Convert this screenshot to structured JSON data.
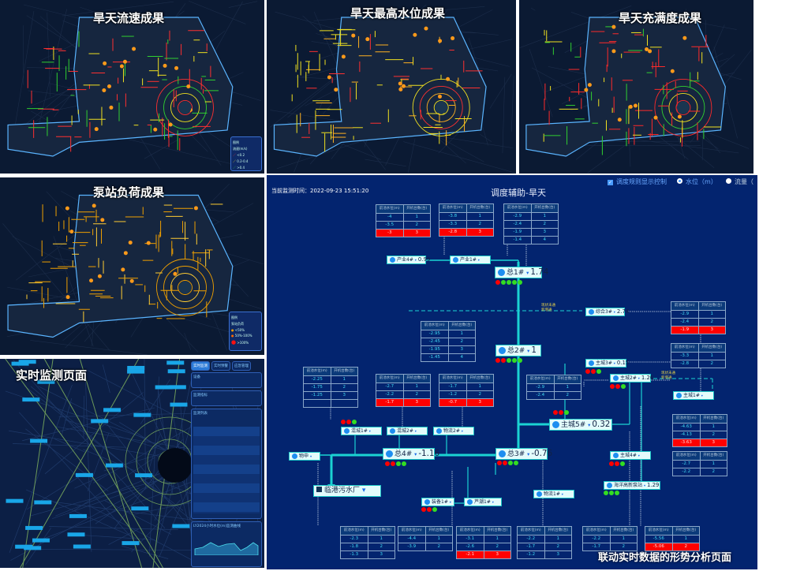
{
  "panels": [
    {
      "title": "旱天流速成果",
      "legend": {
        "title": "图例",
        "subtitle": "流速(m/s)",
        "items": [
          {
            "label": "<0.2",
            "color": "#ff3030"
          },
          {
            "label": "0.2-0.4",
            "color": "#f0e020"
          },
          {
            "label": ">0.4",
            "color": "#30d030"
          }
        ]
      }
    },
    {
      "title": "旱天最高水位成果"
    },
    {
      "title": "旱天充满度成果"
    },
    {
      "title": "泵站负荷成果",
      "legend": {
        "title": "图例",
        "subtitle": "泵站负荷",
        "items": [
          {
            "label": "<50%",
            "color": "#f0a000"
          },
          {
            "label": "50%-100%",
            "color": "#ff6a00"
          },
          {
            "label": ">100%",
            "color": "#ff1010"
          }
        ]
      }
    },
    {
      "title": "实时监测页面",
      "tabs": [
        "实时监测",
        "实时预警",
        "应急管理"
      ],
      "sections": {
        "device": "设备",
        "indicator": "监测指标",
        "list": "监测列表",
        "chart": "LY2024小时水位(m)监测曲线"
      },
      "legend_title": "图例",
      "chart_times": [
        "15:03:22",
        "20:06:47",
        "05:06:41",
        "06:53:06",
        "11:45:20"
      ]
    }
  ],
  "analysis": {
    "monitor_time": "当前监测时间：2022-09-23 15:51:20",
    "title": "调度辅助-旱天",
    "rules_toggle": "调度规则显示控制",
    "rules_checked": true,
    "radio_level": "水位（m）",
    "radio_flow": "流量（",
    "selected_radio": "level",
    "table_header": [
      "前池水位(m)",
      "开机台数(台)"
    ],
    "colors": {
      "bg": "#03246f",
      "pipe": "#1bd3d3",
      "alarm": "#ff0000",
      "ok": "#33dd22"
    },
    "tables": [
      {
        "rows": [
          [
            "-4",
            "1"
          ],
          [
            "-3.5",
            "2"
          ],
          [
            "-3",
            "3"
          ]
        ],
        "hot": 2
      },
      {
        "rows": [
          [
            "-3.8",
            "1"
          ],
          [
            "-3.3",
            "2"
          ],
          [
            "-2.8",
            "3"
          ]
        ],
        "hot": 2
      },
      {
        "rows": [
          [
            "-2.9",
            "1"
          ],
          [
            "-2.4",
            "2"
          ],
          [
            "-1.9",
            "3"
          ],
          [
            "-1.4",
            "4"
          ]
        ],
        "hot": -1
      },
      {
        "rows": [
          [
            "-2.9",
            "1"
          ],
          [
            "-2.4",
            "2"
          ],
          [
            "-1.9",
            "3"
          ]
        ],
        "hot": 2
      },
      {
        "rows": [
          [
            "-2.95",
            "1"
          ],
          [
            "-2.45",
            "2"
          ],
          [
            "-1.95",
            "3"
          ],
          [
            "-1.45",
            "4"
          ]
        ],
        "hot": -1
      },
      {
        "rows": [
          [
            "-2.25",
            "1"
          ],
          [
            "-1.75",
            "2"
          ],
          [
            "-1.25",
            "3"
          ],
          [
            "",
            ""
          ]
        ],
        "hot": -1
      },
      {
        "rows": [
          [
            "-2.7",
            "1"
          ],
          [
            "-2.2",
            "2"
          ],
          [
            "-1.7",
            "3"
          ]
        ],
        "hot": 2
      },
      {
        "rows": [
          [
            "-1.7",
            "1"
          ],
          [
            "-1.2",
            "2"
          ],
          [
            "-0.7",
            "3"
          ]
        ],
        "hot": 2
      },
      {
        "rows": [
          [
            "-3.3",
            "1"
          ],
          [
            "-2.8",
            "2"
          ]
        ],
        "hot": -1
      },
      {
        "rows": [
          [
            "-2.9",
            "1"
          ],
          [
            "-2.4",
            "2"
          ]
        ],
        "hot": -1
      },
      {
        "rows": [
          [
            "-4.63",
            "1"
          ],
          [
            "-4.13",
            "2"
          ],
          [
            "-3.63",
            "3"
          ]
        ],
        "hot": 2
      },
      {
        "rows": [
          [
            "-2.7",
            "1"
          ],
          [
            "-2.2",
            "2"
          ]
        ],
        "hot": -1
      },
      {
        "rows": [
          [
            "-2.3",
            "1"
          ],
          [
            "-1.8",
            "2"
          ],
          [
            "-1.3",
            "3"
          ]
        ],
        "hot": -1
      },
      {
        "rows": [
          [
            "-4.4",
            "1"
          ],
          [
            "-3.9",
            "2"
          ]
        ],
        "hot": -1
      },
      {
        "rows": [
          [
            "-3.1",
            "1"
          ],
          [
            "-2.6",
            "2"
          ],
          [
            "-2.1",
            "3"
          ]
        ],
        "hot": 2
      },
      {
        "rows": [
          [
            "-2.2",
            "1"
          ],
          [
            "-1.7",
            "2"
          ],
          [
            "-1.2",
            "3"
          ]
        ],
        "hot": -1
      },
      {
        "rows": [
          [
            "-2.2",
            "1"
          ],
          [
            "-1.7",
            "2"
          ]
        ],
        "hot": -1
      },
      {
        "rows": [
          [
            "-5.56",
            "1"
          ],
          [
            "-5.06",
            "2"
          ]
        ],
        "hot": 1
      }
    ],
    "stations": [
      {
        "name": "产业4#",
        "value": "0.99",
        "dots": ""
      },
      {
        "name": "产业1#",
        "value": "",
        "dots": ""
      },
      {
        "name": "总1#",
        "value": "1.74",
        "dots": "rgggg",
        "big": true
      },
      {
        "name": "综合3#",
        "value": "2.74",
        "dots": ""
      },
      {
        "name": "总2#",
        "value": "1",
        "dots": "rrggg",
        "big": true
      },
      {
        "name": "主城3#",
        "value": "0.15",
        "dots": "rrg"
      },
      {
        "name": "主城2#",
        "value": "1.26",
        "dots": "rrg"
      },
      {
        "name": "主城1#",
        "value": "",
        "dots": ""
      },
      {
        "name": "主城5#",
        "value": "0.32",
        "dots": "rrg",
        "big": true
      },
      {
        "name": "混城1#",
        "value": "",
        "dots": "rrg"
      },
      {
        "name": "混城2#",
        "value": "",
        "dots": ""
      },
      {
        "name": "物流2#",
        "value": "",
        "dots": ""
      },
      {
        "name": "物申",
        "value": "",
        "dots": ""
      },
      {
        "name": "总4#",
        "value": "-1.16",
        "dots": "rrgg",
        "big": true
      },
      {
        "name": "总3#",
        "value": "-0.76",
        "dots": "rrgg",
        "big": true
      },
      {
        "name": "主城4#",
        "value": "",
        "dots": "rrg"
      },
      {
        "name": "装备1#",
        "value": "",
        "dots": "rrg"
      },
      {
        "name": "芦潮1#",
        "value": "",
        "dots": ""
      },
      {
        "name": "物流1#",
        "value": "",
        "dots": ""
      },
      {
        "name": "海洋高新泵站",
        "value": "1.29",
        "dots": "ggg"
      }
    ],
    "plant": "临港污水厂",
    "notes": [
      "现状未通",
      "新增通"
    ],
    "caption": "联动实时数据的形势分析页面"
  }
}
